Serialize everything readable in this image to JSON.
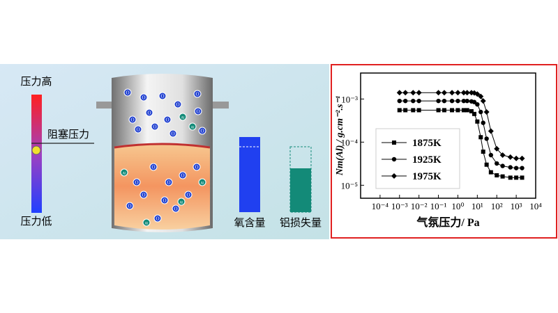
{
  "diagram": {
    "pressure_high": "压力高",
    "blocking_pressure": "阻塞压力",
    "pressure_low": "压力低",
    "oxygen_content": "氧含量",
    "al_loss": "铝损失量",
    "particle_labels": [
      "O",
      "Al"
    ]
  },
  "chart_data": {
    "type": "line",
    "xlabel": "气氛压力/ Pa",
    "ylabel": "Nm(Al) / g.cm⁻².s⁻¹",
    "xscale": "log",
    "yscale": "log",
    "legend": "lower left",
    "x": [
      0.001,
      0.002,
      0.005,
      0.01,
      0.1,
      0.2,
      0.5,
      1,
      2,
      3,
      5,
      7,
      10,
      15,
      20,
      30,
      50,
      100,
      200,
      500,
      1000,
      2000
    ],
    "series": [
      {
        "name": "1875K",
        "color": "#000000",
        "marker": "square",
        "values": [
          0.00055,
          0.00055,
          0.00055,
          0.00055,
          0.00055,
          0.00055,
          0.00055,
          0.00055,
          0.00055,
          0.00055,
          0.00052,
          0.00045,
          0.0003,
          0.00013,
          6e-05,
          3e-05,
          2e-05,
          1.7e-05,
          1.6e-05,
          1.5e-05,
          1.5e-05,
          1.5e-05
        ]
      },
      {
        "name": "1925K",
        "color": "#000000",
        "marker": "circle",
        "values": [
          0.0009,
          0.0009,
          0.0009,
          0.0009,
          0.0009,
          0.0009,
          0.0009,
          0.0009,
          0.0009,
          0.0009,
          0.00088,
          0.00085,
          0.00075,
          0.0005,
          0.00028,
          0.00012,
          5e-05,
          3.2e-05,
          2.8e-05,
          2.6e-05,
          2.5e-05,
          2.5e-05
        ]
      },
      {
        "name": "1975K",
        "color": "#000000",
        "marker": "diamond",
        "values": [
          0.0014,
          0.0014,
          0.0014,
          0.0014,
          0.0014,
          0.0014,
          0.0014,
          0.0014,
          0.0014,
          0.0014,
          0.0014,
          0.00138,
          0.0013,
          0.00115,
          0.0009,
          0.0005,
          0.00018,
          7e-05,
          5e-05,
          4.5e-05,
          4.2e-05,
          4.2e-05
        ]
      }
    ],
    "xlim": [
      1e-05,
      10000
    ],
    "ylim": [
      5e-06,
      0.004
    ],
    "xticks": [
      {
        "value": 0.0001,
        "label": "10⁻⁴"
      },
      {
        "value": 0.001,
        "label": "10⁻³"
      },
      {
        "value": 0.01,
        "label": "10⁻²"
      },
      {
        "value": 0.1,
        "label": "10⁻¹"
      },
      {
        "value": 1,
        "label": "10⁰"
      },
      {
        "value": 10,
        "label": "10¹"
      },
      {
        "value": 100,
        "label": "10²"
      },
      {
        "value": 1000,
        "label": "10³"
      },
      {
        "value": 10000,
        "label": "10⁴"
      }
    ],
    "yticks": [
      {
        "value": 1e-05,
        "label": "10⁻⁵"
      },
      {
        "value": 0.0001,
        "label": "10⁻⁴"
      },
      {
        "value": 0.001,
        "label": "10⁻³"
      }
    ]
  }
}
